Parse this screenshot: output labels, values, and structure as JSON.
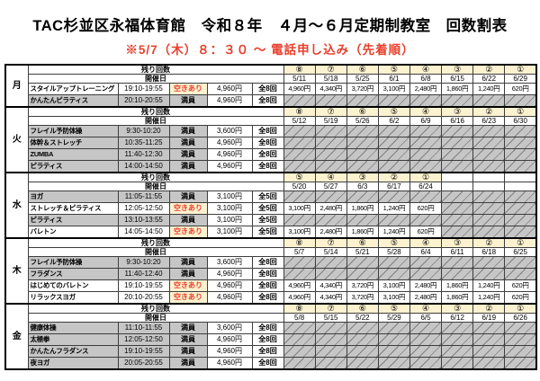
{
  "title": "TAC杉並区永福体育館　令和８年　４月～６月定期制教室　回数割表",
  "subtitle": "※5/7（木）８：３０ ～ 電話申し込み（先着順）",
  "table": {
    "row_labels": {
      "remaining": "残り回数",
      "schedule": "開催日"
    },
    "status_labels": {
      "available": "空きあり",
      "full": "満員"
    },
    "colors": {
      "header_cream": "#fcf2cf",
      "available_red": "#e8402d",
      "closed_gray": "#c6c6c6",
      "slash_line": "#7f7f7f",
      "border": "#000000"
    },
    "days": [
      {
        "day": "月",
        "numbers": [
          "⑧",
          "⑦",
          "⑥",
          "⑤",
          "④",
          "③",
          "②",
          "①"
        ],
        "dates": [
          "5/11",
          "5/18",
          "5/25",
          "6/1",
          "6/8",
          "6/15",
          "6/22",
          "6/29"
        ],
        "classes": [
          {
            "name": "スタイルアップトレーニング",
            "time": "19:10-19:55",
            "status": "空きあり",
            "available": true,
            "price": "4,960円",
            "sessions": "全8回",
            "remaining": [
              "4,960円",
              "4,340円",
              "3,720円",
              "3,100円",
              "2,480円",
              "1,860円",
              "1,240円",
              "620円"
            ]
          },
          {
            "name": "かんたんピラティス",
            "time": "20:10-20:55",
            "status": "満員",
            "available": false,
            "price": "4,960円",
            "sessions": "全8回",
            "remaining": [
              "",
              "",
              "",
              "",
              "",
              "",
              "",
              ""
            ]
          }
        ]
      },
      {
        "day": "火",
        "numbers": [
          "⑧",
          "⑦",
          "⑥",
          "⑤",
          "④",
          "③",
          "②",
          "①"
        ],
        "dates": [
          "5/12",
          "5/19",
          "5/26",
          "6/2",
          "6/9",
          "6/16",
          "6/23",
          "6/30"
        ],
        "classes": [
          {
            "name": "フレイル予防体操",
            "time": "9:30-10:20",
            "status": "満員",
            "available": false,
            "price": "3,600円",
            "sessions": "全8回",
            "remaining": [
              "",
              "",
              "",
              "",
              "",
              "",
              "",
              ""
            ]
          },
          {
            "name": "体幹＆ストレッチ",
            "time": "10:35-11:25",
            "status": "満員",
            "available": false,
            "price": "4,960円",
            "sessions": "全8回",
            "remaining": [
              "",
              "",
              "",
              "",
              "",
              "",
              "",
              ""
            ]
          },
          {
            "name": "ZUMBA",
            "time": "11:40-12:30",
            "status": "満員",
            "available": false,
            "price": "4,960円",
            "sessions": "全8回",
            "remaining": [
              "",
              "",
              "",
              "",
              "",
              "",
              "",
              ""
            ]
          },
          {
            "name": "ピラティス",
            "time": "14:00-14:50",
            "status": "満員",
            "available": false,
            "price": "4,960円",
            "sessions": "全8回",
            "remaining": [
              "",
              "",
              "",
              "",
              "",
              "",
              "",
              ""
            ]
          }
        ]
      },
      {
        "day": "水",
        "numbers": [
          "⑤",
          "④",
          "③",
          "②",
          "①",
          "",
          "",
          ""
        ],
        "dates": [
          "5/20",
          "5/27",
          "6/3",
          "6/17",
          "6/24",
          "",
          "",
          ""
        ],
        "classes": [
          {
            "name": "ヨガ",
            "time": "11:05-11:55",
            "status": "満員",
            "available": false,
            "price": "3,100円",
            "sessions": "全5回",
            "remaining": [
              "",
              "",
              "",
              "",
              "",
              "",
              "",
              ""
            ]
          },
          {
            "name": "ストレッチ＆ピラティス",
            "time": "12:05-12:50",
            "status": "空きあり",
            "available": true,
            "price": "3,100円",
            "sessions": "全5回",
            "remaining": [
              "3,100円",
              "2,480円",
              "1,860円",
              "1,240円",
              "620円",
              "",
              "",
              ""
            ]
          },
          {
            "name": "ピラティス",
            "time": "13:10-13:55",
            "status": "満員",
            "available": false,
            "price": "3,100円",
            "sessions": "全5回",
            "remaining": [
              "",
              "",
              "",
              "",
              "",
              "",
              "",
              ""
            ]
          },
          {
            "name": "バレトン",
            "time": "14:05-14:50",
            "status": "空きあり",
            "available": true,
            "price": "3,100円",
            "sessions": "全5回",
            "remaining": [
              "3,100円",
              "2,480円",
              "1,860円",
              "1,240円",
              "620円",
              "",
              "",
              ""
            ]
          }
        ]
      },
      {
        "day": "木",
        "numbers": [
          "⑧",
          "⑦",
          "⑥",
          "⑤",
          "④",
          "③",
          "②",
          "①"
        ],
        "dates": [
          "5/7",
          "5/14",
          "5/21",
          "5/28",
          "6/4",
          "6/11",
          "6/18",
          "6/25"
        ],
        "classes": [
          {
            "name": "フレイル予防体操",
            "time": "9:30-10:20",
            "status": "満員",
            "available": false,
            "price": "3,600円",
            "sessions": "全8回",
            "remaining": [
              "",
              "",
              "",
              "",
              "",
              "",
              "",
              ""
            ]
          },
          {
            "name": "フラダンス",
            "time": "11:40-12:40",
            "status": "満員",
            "available": false,
            "price": "4,960円",
            "sessions": "全8回",
            "remaining": [
              "",
              "",
              "",
              "",
              "",
              "",
              "",
              ""
            ]
          },
          {
            "name": "はじめてのバレトン",
            "time": "19:10-19:55",
            "status": "空きあり",
            "available": true,
            "price": "4,960円",
            "sessions": "全8回",
            "remaining": [
              "4,960円",
              "4,340円",
              "3,720円",
              "3,100円",
              "2,480円",
              "1,860円",
              "1,240円",
              "620円"
            ]
          },
          {
            "name": "リラックスヨガ",
            "time": "20:10-20:55",
            "status": "空きあり",
            "available": true,
            "price": "4,960円",
            "sessions": "全8回",
            "remaining": [
              "4,960円",
              "4,340円",
              "3,720円",
              "3,100円",
              "2,480円",
              "1,860円",
              "1,240円",
              "620円"
            ]
          }
        ]
      },
      {
        "day": "金",
        "numbers": [
          "⑧",
          "⑦",
          "⑥",
          "⑤",
          "④",
          "③",
          "②",
          "①"
        ],
        "dates": [
          "5/8",
          "5/15",
          "5/22",
          "5/29",
          "6/5",
          "6/12",
          "6/19",
          "6/26"
        ],
        "classes": [
          {
            "name": "健康体操",
            "time": "11:10-11:55",
            "status": "満員",
            "available": false,
            "price": "3,600円",
            "sessions": "全8回",
            "remaining": [
              "",
              "",
              "",
              "",
              "",
              "",
              "",
              ""
            ]
          },
          {
            "name": "太極拳",
            "time": "12:05-12:50",
            "status": "満員",
            "available": false,
            "price": "4,960円",
            "sessions": "全8回",
            "remaining": [
              "",
              "",
              "",
              "",
              "",
              "",
              "",
              ""
            ]
          },
          {
            "name": "かんたんフラダンス",
            "time": "19:10-19:55",
            "status": "満員",
            "available": false,
            "price": "4,960円",
            "sessions": "全8回",
            "remaining": [
              "",
              "",
              "",
              "",
              "",
              "",
              "",
              ""
            ]
          },
          {
            "name": "夜ヨガ",
            "time": "20:05-20:55",
            "status": "満員",
            "available": false,
            "price": "4,960円",
            "sessions": "全8回",
            "remaining": [
              "",
              "",
              "",
              "",
              "",
              "",
              "",
              ""
            ]
          }
        ]
      }
    ]
  }
}
